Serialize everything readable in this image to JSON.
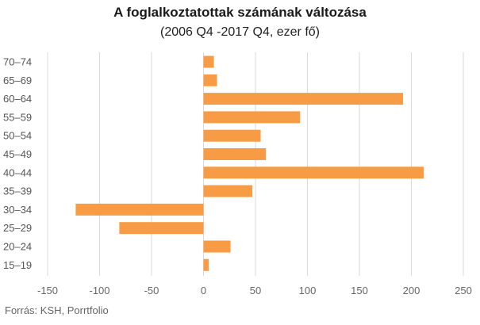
{
  "chart_data": {
    "type": "bar",
    "orientation": "horizontal",
    "title": "A foglalkoztatottak számának változása",
    "subtitle": "(2006 Q4 -2017 Q4, ezer fő)",
    "categories": [
      "70–74",
      "65–69",
      "60–64",
      "55–59",
      "50–54",
      "45–49",
      "40–44",
      "35–39",
      "30–34",
      "25–29",
      "20–24",
      "15–19"
    ],
    "values": [
      10,
      13,
      192,
      93,
      55,
      60,
      212,
      47,
      -123,
      -81,
      26,
      5
    ],
    "xlim": [
      -150,
      250
    ],
    "xticks": [
      "-150",
      "-100",
      "-50",
      "0",
      "50",
      "100",
      "150",
      "200",
      "250"
    ],
    "grid": true,
    "bar_color": "#f79c45"
  },
  "source": "Forrás: KSH, Porrtfolio"
}
